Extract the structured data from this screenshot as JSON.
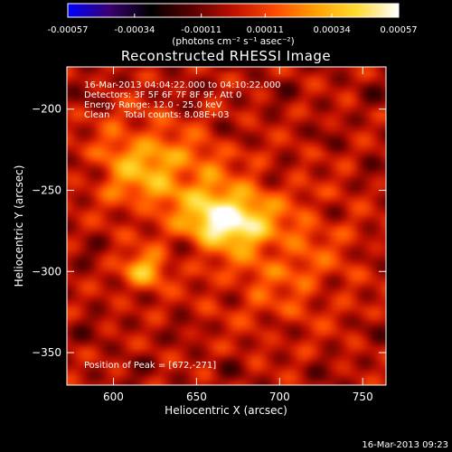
{
  "colorbar": {
    "tick_labels": [
      "-0.00057",
      "-0.00034",
      "-0.00011",
      "0.00011",
      "0.00034",
      "0.00057"
    ],
    "tick_values": [
      -0.00057,
      -0.00034,
      -0.00011,
      0.00011,
      0.00034,
      0.00057
    ],
    "range": [
      -0.00057,
      0.00057
    ],
    "unit_label": "(photons cm⁻² s⁻¹ asec⁻²)",
    "colors": [
      "#0000ff",
      "#3a0070",
      "#000000",
      "#5a0000",
      "#c01000",
      "#ff4a00",
      "#ffa000",
      "#ffdc30",
      "#ffffff"
    ]
  },
  "chart_data": {
    "type": "heatmap",
    "title": "Reconstructed RHESSI Image",
    "xlabel": "Heliocentric X (arcsec)",
    "ylabel": "Heliocentric Y (arcsec)",
    "xlim": [
      572,
      764
    ],
    "ylim": [
      -370,
      -174
    ],
    "xticks": [
      600,
      650,
      700,
      750
    ],
    "yticks": [
      -200,
      -250,
      -300,
      -350
    ],
    "info_lines": [
      "16-Mar-2013 04:04:22.000 to 04:10:22.000",
      "Detectors: 3F 5F 6F 7F 8F 9F, Att 0",
      "Energy Range: 12.0 - 25.0 keV",
      "Clean     Total counts: 8.08E+03"
    ],
    "peak_label": "Position of Peak = [672,-271]",
    "peak": {
      "x": 672,
      "y": -271,
      "value": 0.00057
    },
    "sources": [
      {
        "x": 668,
        "y": -268,
        "amplitude": 0.00057,
        "sigma_x": 16,
        "sigma_y": 11
      },
      {
        "x": 618,
        "y": -300,
        "amplitude": 0.00036,
        "sigma_x": 9,
        "sigma_y": 9
      },
      {
        "x": 640,
        "y": -240,
        "amplitude": 0.00025,
        "sigma_x": 22,
        "sigma_y": 18
      },
      {
        "x": 610,
        "y": -232,
        "amplitude": 0.00022,
        "sigma_x": 16,
        "sigma_y": 20
      },
      {
        "x": 700,
        "y": -290,
        "amplitude": 0.00018,
        "sigma_x": 30,
        "sigma_y": 30
      }
    ]
  },
  "footer": {
    "timestamp": "16-Mar-2013 09:23"
  }
}
